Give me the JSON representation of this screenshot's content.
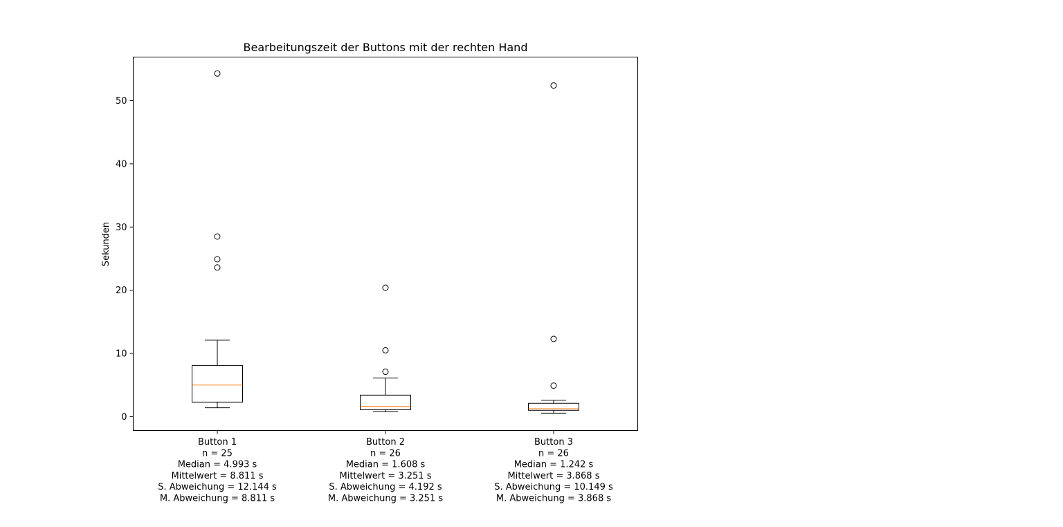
{
  "chart_data": {
    "type": "boxplot",
    "title": "Bearbeitungszeit der Buttons mit der rechten Hand",
    "xlabel": "",
    "ylabel": "Sekunden",
    "ylim": [
      -2.2,
      56.9
    ],
    "yticks": [
      0,
      10,
      20,
      30,
      40,
      50
    ],
    "grid": false,
    "legend": "none",
    "colors": {
      "box": "#000000",
      "median": "#ff7f0e",
      "flier": "#000000"
    },
    "series": [
      {
        "tick_label": [
          "Button 1",
          "n = 25",
          "Median = 4.993 s",
          " Mittelwert = 8.811 s",
          "S. Abweichung = 12.144 s",
          "M. Abweichung = 8.811 s"
        ],
        "whisker_low": 1.4,
        "q1": 2.3,
        "median": 4.993,
        "q3": 8.1,
        "whisker_high": 12.1,
        "fliers": [
          23.6,
          24.9,
          28.5,
          54.3
        ]
      },
      {
        "tick_label": [
          "Button 2",
          "n = 26",
          "Median = 1.608 s",
          " Mittelwert = 3.251 s",
          "S. Abweichung = 4.192 s",
          "M. Abweichung = 3.251 s"
        ],
        "whisker_low": 0.75,
        "q1": 1.1,
        "median": 1.608,
        "q3": 3.4,
        "whisker_high": 6.1,
        "fliers": [
          7.1,
          10.5,
          20.4
        ]
      },
      {
        "tick_label": [
          "Button 3",
          "n = 26",
          "Median = 1.242 s",
          " Mittelwert = 3.868 s",
          "S. Abweichung = 10.149 s",
          "M. Abweichung = 3.868 s"
        ],
        "whisker_low": 0.55,
        "q1": 1.0,
        "median": 1.242,
        "q3": 2.1,
        "whisker_high": 2.6,
        "fliers": [
          4.9,
          12.3,
          52.4
        ]
      }
    ]
  }
}
